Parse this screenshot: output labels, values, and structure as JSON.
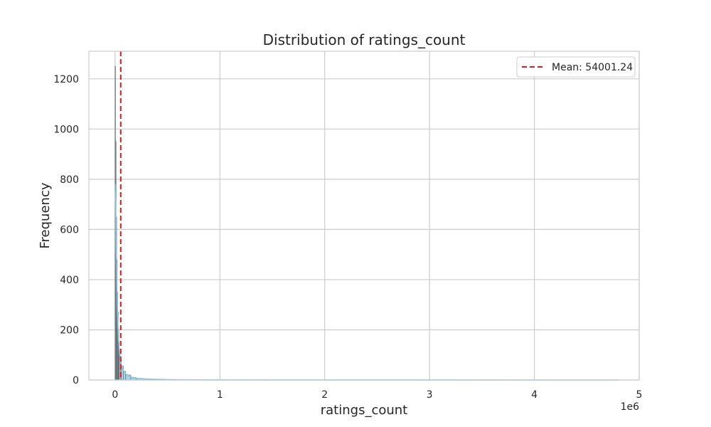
{
  "chart_data": {
    "type": "histogram",
    "title": "Distribution of ratings_count",
    "xlabel": "ratings_count",
    "ylabel": "Frequency",
    "x_offset_label": "1e6",
    "xlim": [
      -250000,
      5000000
    ],
    "ylim": [
      0,
      1310
    ],
    "xticks": [
      0,
      1000000,
      2000000,
      3000000,
      4000000,
      5000000
    ],
    "xtick_labels": [
      "0",
      "1",
      "2",
      "3",
      "4",
      "5"
    ],
    "yticks": [
      0,
      200,
      400,
      600,
      800,
      1000,
      1200
    ],
    "grid": true,
    "legend_position": "top-right",
    "mean": {
      "label": "Mean: 54001.24",
      "value": 54001.24,
      "color": "#e31a1c"
    },
    "bar_color": "#87c4e0",
    "kde_color": "#87c4e0",
    "bins": {
      "x": [
        0,
        5000,
        10000,
        15000,
        20000,
        25000,
        30000,
        35000,
        40000,
        50000,
        60000,
        80000,
        100000,
        150000,
        200000,
        300000,
        500000,
        1000000
      ],
      "counts": [
        1250,
        950,
        650,
        480,
        350,
        270,
        200,
        150,
        110,
        80,
        55,
        35,
        20,
        10,
        5,
        2,
        1,
        0
      ]
    },
    "kde": {
      "x": [
        0,
        5000,
        10000,
        15000,
        20000,
        30000,
        40000,
        50000,
        60000,
        80000,
        100000,
        150000,
        200000,
        300000,
        500000,
        700000,
        1000000,
        2000000,
        3000000,
        4000000,
        4800000
      ],
      "y": [
        780,
        700,
        520,
        400,
        300,
        180,
        120,
        80,
        60,
        38,
        25,
        12,
        7,
        4,
        1.5,
        0.8,
        0.4,
        0.1,
        0.05,
        0.02,
        0.01
      ]
    }
  }
}
